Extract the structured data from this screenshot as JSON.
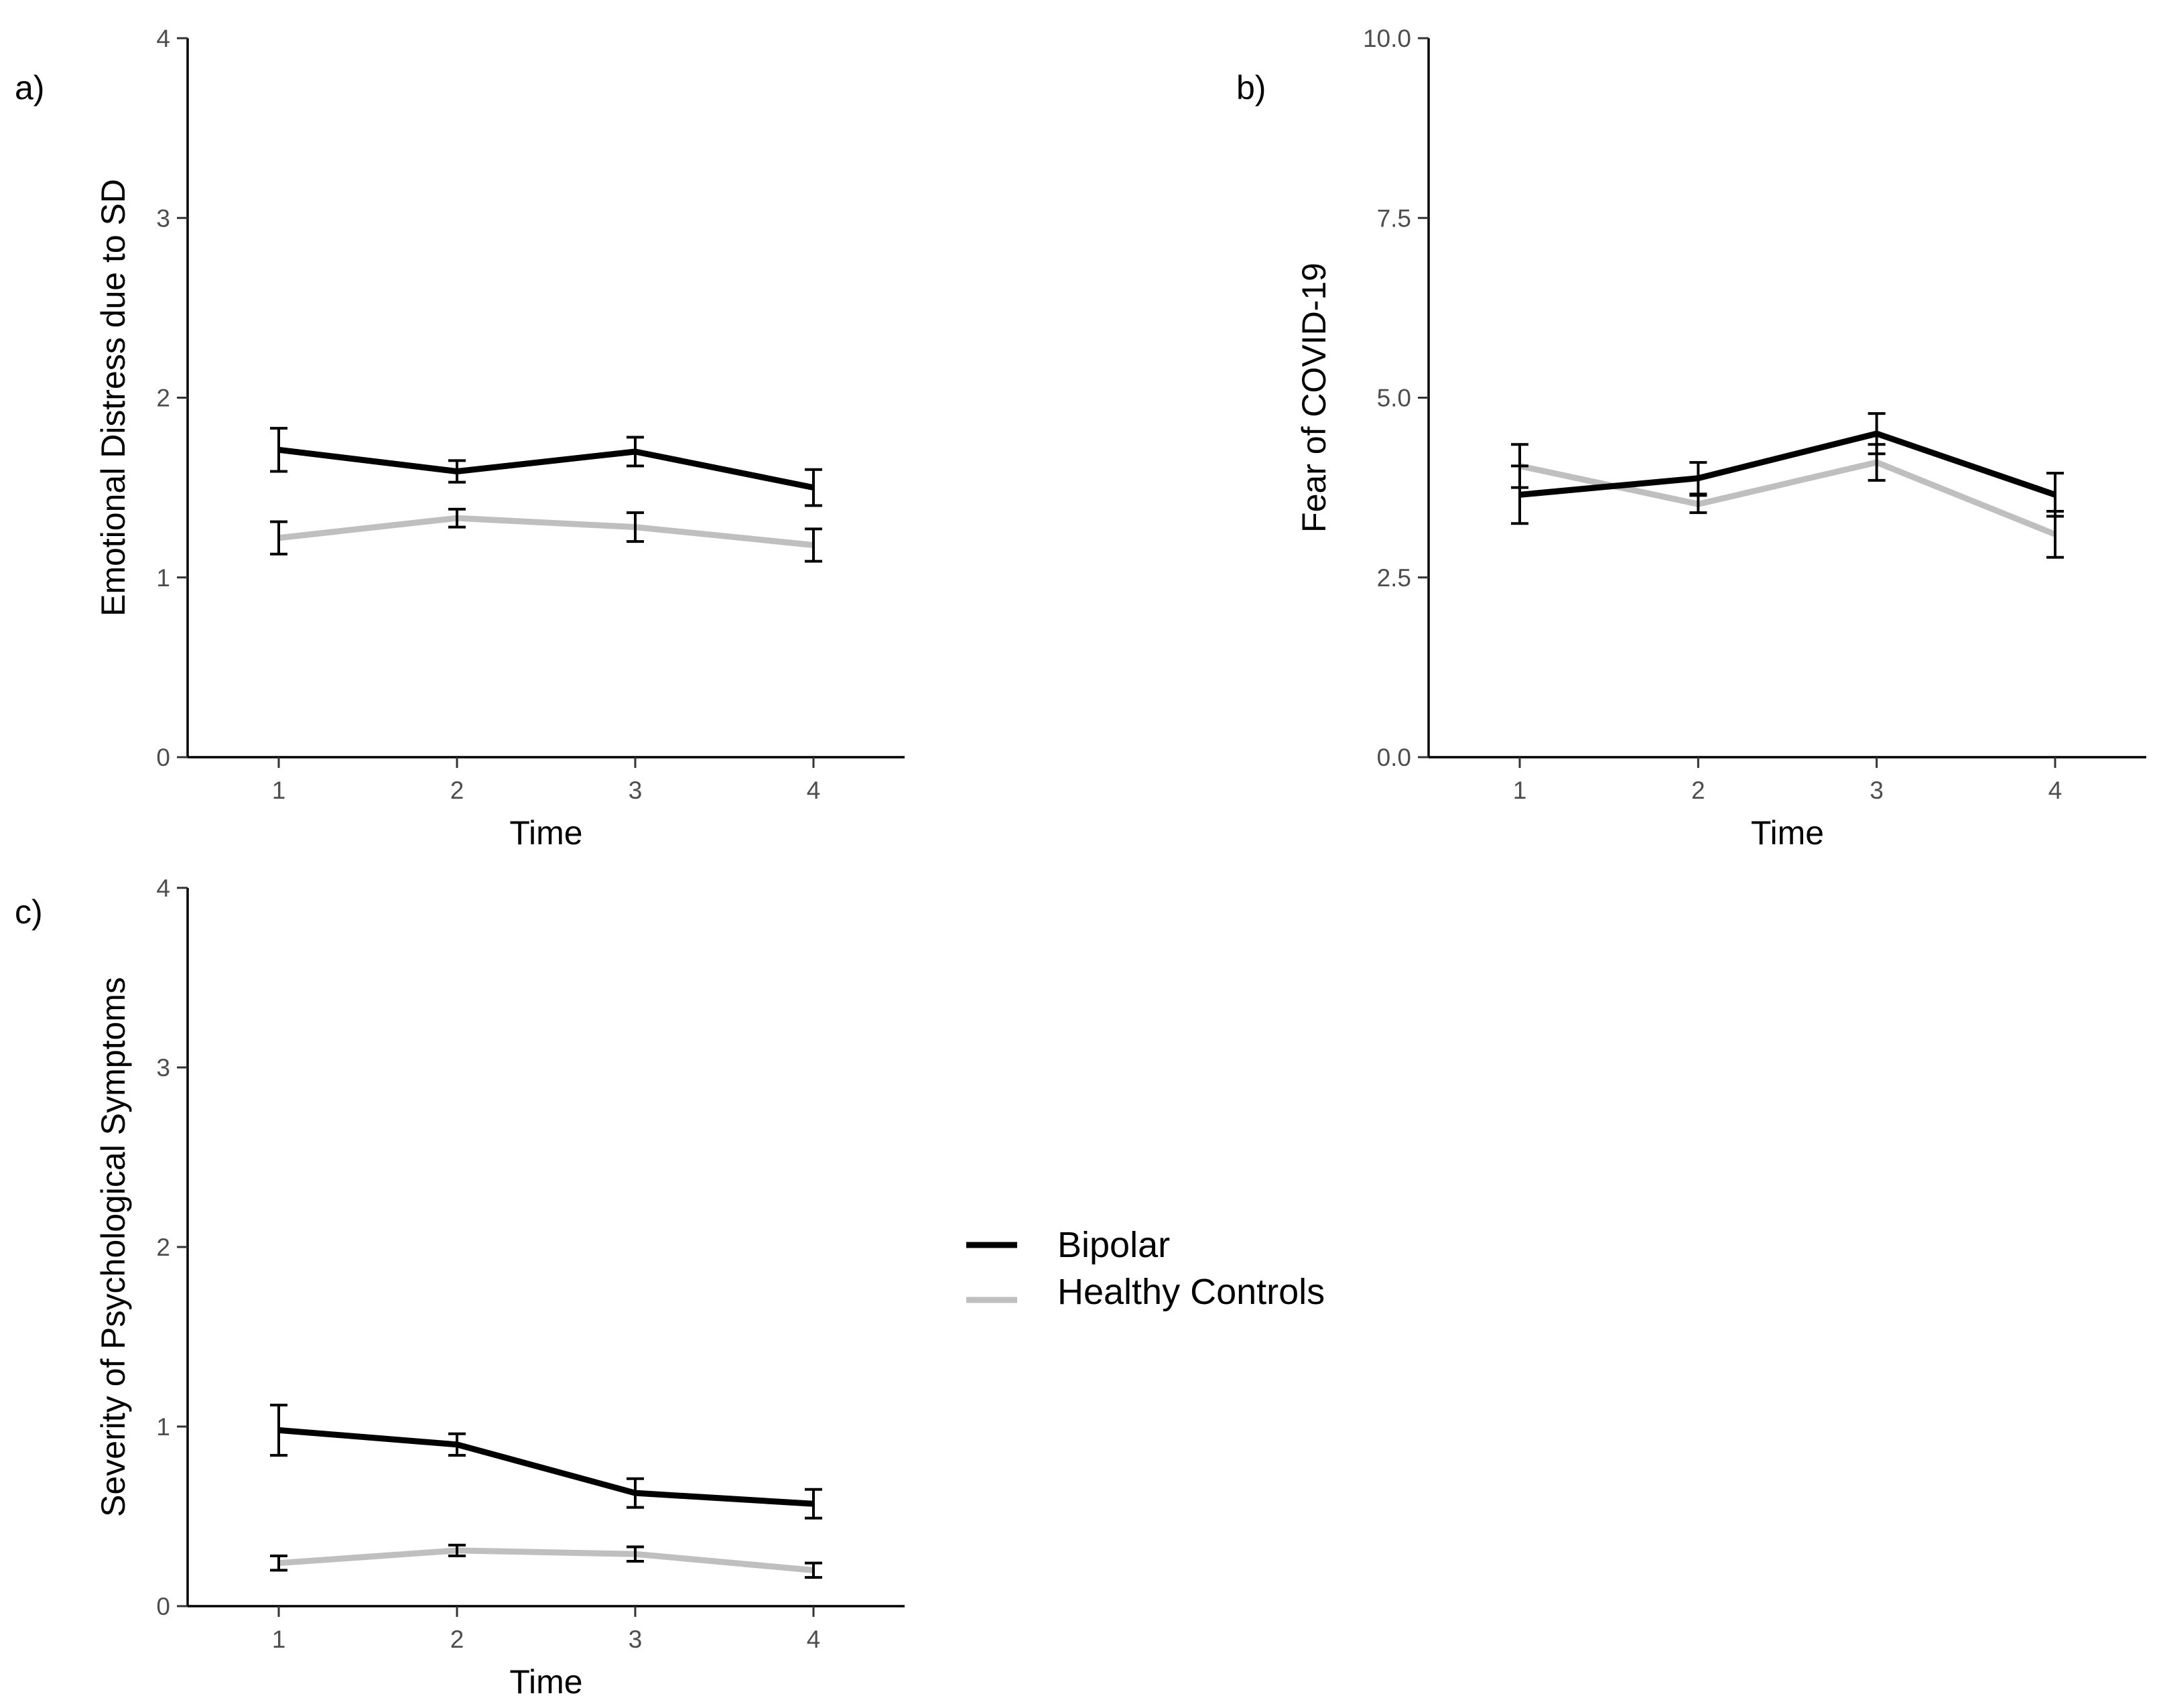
{
  "legend": {
    "items": [
      {
        "label": "Bipolar",
        "color": "#000000"
      },
      {
        "label": "Healthy Controls",
        "color": "#bfbfbf"
      }
    ]
  },
  "chart_data": [
    {
      "panel_label": "a)",
      "type": "line",
      "xlabel": "Time",
      "ylabel": "Emotional Distress due to SD",
      "x": [
        1,
        2,
        3,
        4
      ],
      "xticks": [
        "1",
        "2",
        "3",
        "4"
      ],
      "ylim": [
        0,
        4
      ],
      "yticks": [
        "0",
        "1",
        "2",
        "3",
        "4"
      ],
      "grid": false,
      "series": [
        {
          "name": "Bipolar",
          "color": "#000000",
          "values": [
            1.71,
            1.59,
            1.7,
            1.5
          ],
          "error": [
            0.12,
            0.06,
            0.08,
            0.1
          ]
        },
        {
          "name": "Healthy Controls",
          "color": "#bfbfbf",
          "values": [
            1.22,
            1.33,
            1.28,
            1.18
          ],
          "error": [
            0.09,
            0.05,
            0.08,
            0.09
          ]
        }
      ]
    },
    {
      "panel_label": "b)",
      "type": "line",
      "xlabel": "Time",
      "ylabel": "Fear of COVID-19",
      "x": [
        1,
        2,
        3,
        4
      ],
      "xticks": [
        "1",
        "2",
        "3",
        "4"
      ],
      "ylim": [
        0,
        10
      ],
      "yticks": [
        "0.0",
        "2.5",
        "5.0",
        "7.5",
        "10.0"
      ],
      "grid": false,
      "series": [
        {
          "name": "Bipolar",
          "color": "#000000",
          "values": [
            3.65,
            3.88,
            4.5,
            3.65
          ],
          "error": [
            0.4,
            0.22,
            0.28,
            0.3
          ]
        },
        {
          "name": "Healthy Controls",
          "color": "#bfbfbf",
          "values": [
            4.05,
            3.52,
            4.1,
            3.1
          ],
          "error": [
            0.3,
            0.12,
            0.25,
            0.32
          ]
        }
      ]
    },
    {
      "panel_label": "c)",
      "type": "line",
      "xlabel": "Time",
      "ylabel": "Severity of Psychological Symptoms",
      "x": [
        1,
        2,
        3,
        4
      ],
      "xticks": [
        "1",
        "2",
        "3",
        "4"
      ],
      "ylim": [
        0,
        4
      ],
      "yticks": [
        "0",
        "1",
        "2",
        "3",
        "4"
      ],
      "grid": false,
      "series": [
        {
          "name": "Bipolar",
          "color": "#000000",
          "values": [
            0.98,
            0.9,
            0.63,
            0.57
          ],
          "error": [
            0.14,
            0.06,
            0.08,
            0.08
          ]
        },
        {
          "name": "Healthy Controls",
          "color": "#bfbfbf",
          "values": [
            0.24,
            0.31,
            0.29,
            0.2
          ],
          "error": [
            0.04,
            0.03,
            0.04,
            0.04
          ]
        }
      ]
    }
  ]
}
